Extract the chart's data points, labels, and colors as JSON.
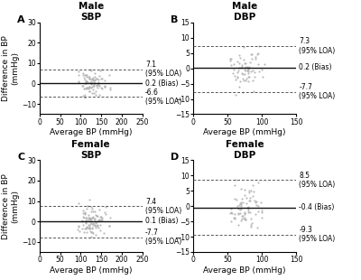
{
  "panels": [
    {
      "label": "A",
      "title": "Male\nSBP",
      "bias": 0.2,
      "upper_loa": 7.1,
      "lower_loa": -6.6,
      "xlim": [
        0,
        250
      ],
      "ylim": [
        -15,
        30
      ],
      "yticks": [
        -10,
        0,
        10,
        20,
        30
      ],
      "xticks": [
        0,
        50,
        100,
        150,
        200,
        250
      ],
      "upper_label": "7.1\n(95% LOA)",
      "bias_label": "0.2 (Bias)",
      "lower_label": "-6.6\n(95% LOA)",
      "x_centers": [
        95,
        105,
        110,
        115,
        120,
        125,
        130,
        135,
        140,
        145,
        150,
        160,
        170
      ],
      "n_per_col": [
        4,
        6,
        8,
        10,
        12,
        10,
        10,
        8,
        8,
        6,
        5,
        4,
        3
      ]
    },
    {
      "label": "B",
      "title": "Male\nDBP",
      "bias": 0.2,
      "upper_loa": 7.3,
      "lower_loa": -7.7,
      "xlim": [
        0,
        150
      ],
      "ylim": [
        -15,
        15
      ],
      "yticks": [
        -15,
        -10,
        -5,
        0,
        5,
        10,
        15
      ],
      "xticks": [
        0,
        50,
        100,
        150
      ],
      "upper_label": "7.3\n(95% LOA)",
      "bias_label": "0.2 (Bias)",
      "lower_label": "-7.7\n(95% LOA)",
      "x_centers": [
        55,
        60,
        65,
        70,
        75,
        80,
        85,
        90,
        95,
        100
      ],
      "n_per_col": [
        4,
        6,
        8,
        10,
        10,
        10,
        8,
        6,
        4,
        3
      ]
    },
    {
      "label": "C",
      "title": "Female\nSBP",
      "bias": 0.1,
      "upper_loa": 7.4,
      "lower_loa": -7.7,
      "xlim": [
        0,
        250
      ],
      "ylim": [
        -15,
        30
      ],
      "yticks": [
        -10,
        0,
        10,
        20,
        30
      ],
      "xticks": [
        0,
        50,
        100,
        150,
        200,
        250
      ],
      "upper_label": "7.4\n(95% LOA)",
      "bias_label": "0.1 (Bias)",
      "lower_label": "-7.7\n(95% LOA)",
      "x_centers": [
        95,
        105,
        110,
        115,
        120,
        125,
        130,
        135,
        140,
        145,
        150,
        160,
        170
      ],
      "n_per_col": [
        5,
        7,
        9,
        11,
        13,
        12,
        11,
        9,
        8,
        7,
        5,
        4,
        3
      ]
    },
    {
      "label": "D",
      "title": "Female\nDBP",
      "bias": -0.4,
      "upper_loa": 8.5,
      "lower_loa": -9.3,
      "xlim": [
        0,
        150
      ],
      "ylim": [
        -15,
        15
      ],
      "yticks": [
        -15,
        -10,
        -5,
        0,
        5,
        10,
        15
      ],
      "xticks": [
        0,
        50,
        100,
        150
      ],
      "upper_label": "8.5\n(95% LOA)",
      "bias_label": "-0.4 (Bias)",
      "lower_label": "-9.3\n(95% LOA)",
      "x_centers": [
        55,
        60,
        65,
        70,
        75,
        80,
        85,
        90,
        95,
        100
      ],
      "n_per_col": [
        5,
        7,
        9,
        11,
        11,
        10,
        8,
        7,
        5,
        3
      ]
    }
  ],
  "dot_color": "#b0b0b0",
  "dot_size": 2.5,
  "bias_line_color": "#111111",
  "loa_line_color": "#555555",
  "annot_fontsize": 5.5,
  "axis_label_fontsize": 6.5,
  "tick_fontsize": 5.5,
  "title_fontsize": 7.5,
  "panel_label_fontsize": 8
}
